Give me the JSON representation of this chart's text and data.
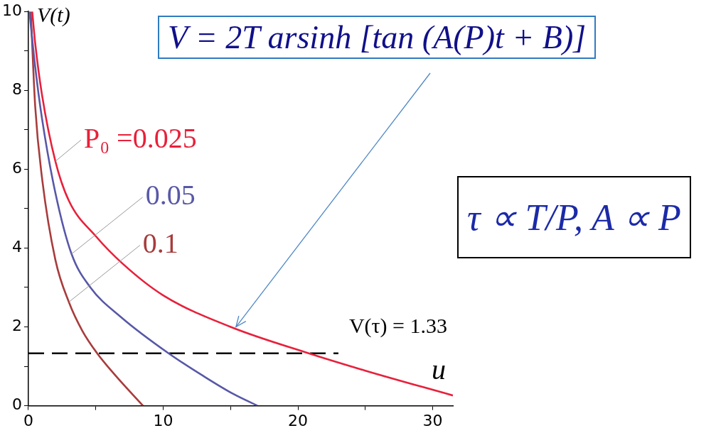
{
  "chart_data": {
    "type": "line",
    "xlabel": "u",
    "ylabel": "V(t)",
    "xlim": [
      0,
      31.5
    ],
    "ylim": [
      0,
      10
    ],
    "xticks": [
      0,
      {
        "value": 5,
        "label": null
      },
      10,
      {
        "value": 15,
        "label": null
      },
      20,
      {
        "value": 25,
        "label": null
      },
      30
    ],
    "yticks": [
      0,
      {
        "value": 1,
        "label": null
      },
      2,
      {
        "value": 3,
        "label": null
      },
      4,
      {
        "value": 5,
        "label": null
      },
      6,
      {
        "value": 7,
        "label": null
      },
      8,
      {
        "value": 9,
        "label": null
      },
      10
    ],
    "grid": false,
    "legend": false,
    "marker": "none",
    "series": [
      {
        "name": "P₀ =0.025",
        "color": "#e8203a",
        "x": [
          0.28,
          0.5,
          1,
          2,
          3,
          5,
          7,
          10,
          15,
          20.8,
          25,
          31.5
        ],
        "values": [
          10,
          9.2,
          7.9,
          6.2,
          5.2,
          4.3,
          3.6,
          2.8,
          2.0,
          1.33,
          0.89,
          0.26
        ]
      },
      {
        "name": "0.05",
        "color": "#5858a8",
        "x": [
          0.07,
          0.5,
          1,
          2,
          3.2,
          4.6,
          6.9,
          10.4,
          13,
          15.2,
          17
        ],
        "values": [
          10,
          8.6,
          7.3,
          5.4,
          3.85,
          3.0,
          2.24,
          1.33,
          0.75,
          0.3,
          0
        ]
      },
      {
        "name": "0.1",
        "color": "#a83c3c",
        "x": [
          0.17,
          0.5,
          1,
          2,
          3,
          4,
          5.1,
          6.5,
          8.5
        ],
        "values": [
          10,
          7.6,
          5.8,
          3.7,
          2.63,
          1.9,
          1.33,
          0.75,
          0
        ]
      },
      {
        "type": "line",
        "color": "#000000",
        "line_style": "dashed",
        "x": [
          0,
          23
        ],
        "values": [
          1.33,
          1.33
        ]
      }
    ],
    "annotations": [
      {
        "text": "V = 2T arsinh [tan (A(P)t + B)]",
        "x": 15.4,
        "y": 2.0
      },
      "V(τ) = 1.33",
      "τ ∝ T/P, A ∝ P"
    ]
  }
}
